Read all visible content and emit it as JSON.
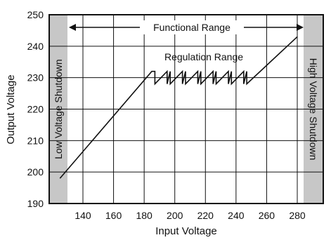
{
  "chart_data": {
    "type": "line",
    "xlabel": "Input Voltage",
    "ylabel": "Output Voltage",
    "xlim": [
      125,
      280
    ],
    "ylim": [
      190,
      250
    ],
    "x_ticks": [
      140,
      160,
      180,
      200,
      220,
      240,
      260,
      280
    ],
    "y_ticks": [
      190,
      200,
      210,
      220,
      230,
      240,
      250
    ],
    "grid": true,
    "series": [
      {
        "x": [
          125,
          185,
          187,
          187,
          195,
          195,
          197,
          197,
          205,
          205,
          207,
          207,
          215,
          215,
          217,
          217,
          225,
          225,
          227,
          227,
          235,
          235,
          237,
          237,
          245,
          245,
          247,
          247,
          280
        ],
        "y": [
          198,
          232,
          232,
          228,
          232,
          228,
          232,
          228,
          232,
          228,
          232,
          228,
          232,
          228,
          232,
          228,
          232,
          228,
          232,
          228,
          232,
          228,
          232,
          228,
          232,
          228,
          232,
          228,
          243
        ]
      }
    ],
    "regions": [
      {
        "label": "Low Voltage Shutdown",
        "x_range": [
          120,
          130
        ],
        "color": "#c7c7c7"
      },
      {
        "label": "High Voltage Shutdown",
        "x_range": [
          278,
          290
        ],
        "color": "#c7c7c7"
      }
    ],
    "annotations": {
      "functional_range": "Functional Range",
      "regulation_range": "Regulation Range"
    }
  }
}
